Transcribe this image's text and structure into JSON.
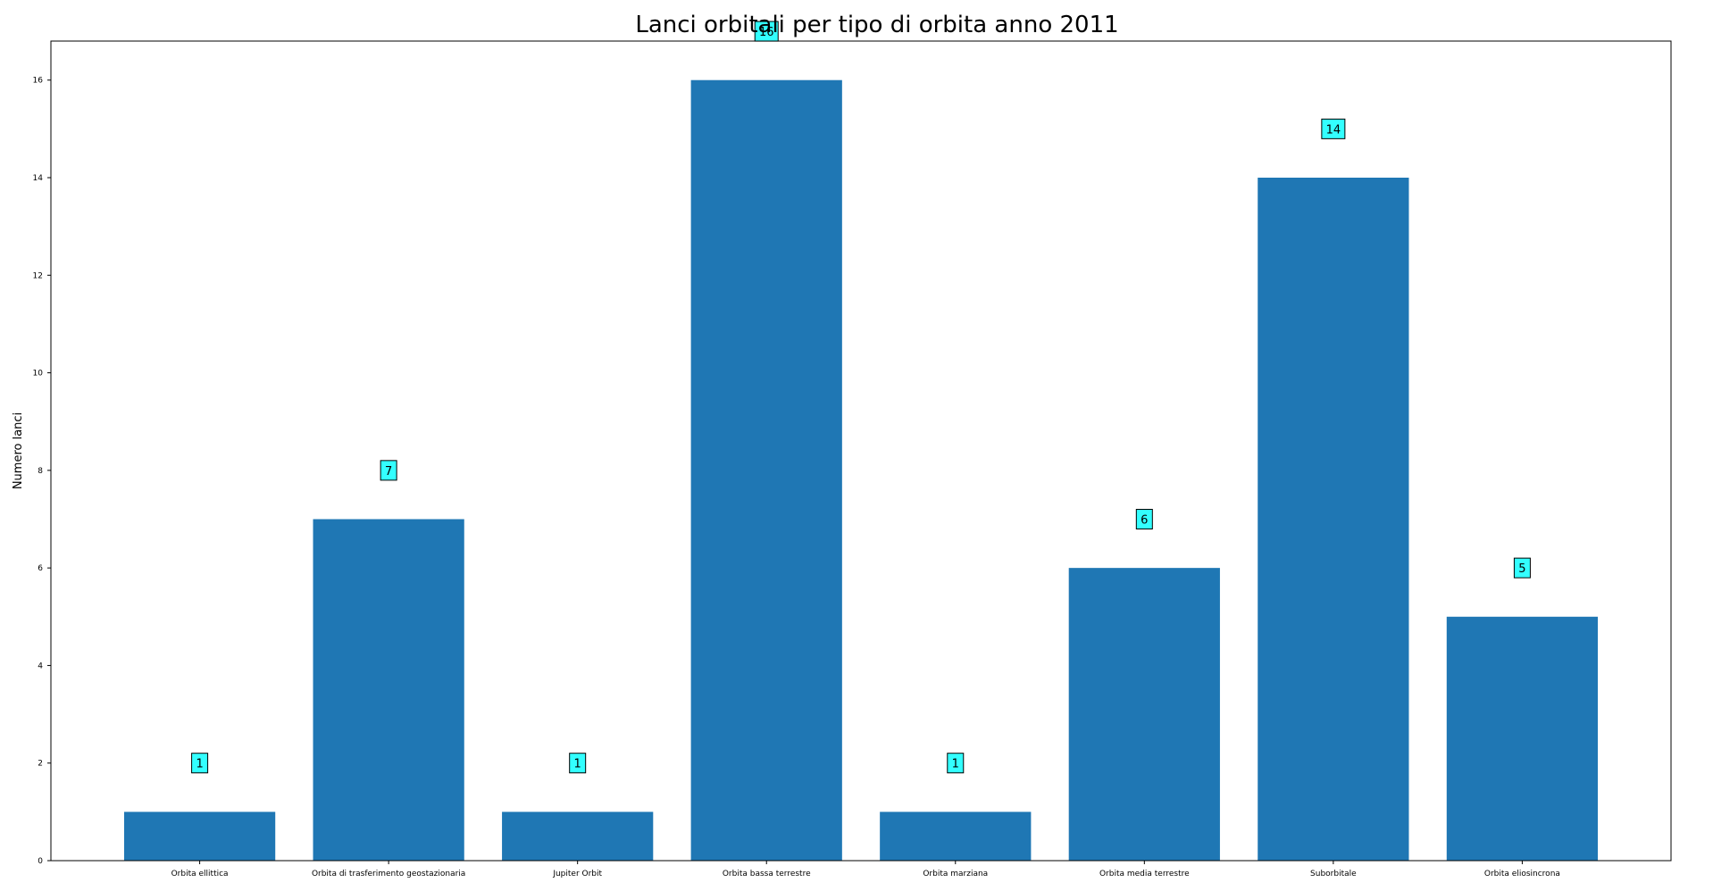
{
  "chart_data": {
    "type": "bar",
    "title": "Lanci orbitali per tipo di orbita anno 2011",
    "xlabel": "",
    "ylabel": "Numero lanci",
    "categories": [
      "Orbita ellittica",
      "Orbita di trasferimento geostazionaria",
      "Jupiter Orbit",
      "Orbita bassa terrestre",
      "Orbita marziana",
      "Orbita media terrestre",
      "Suborbitale",
      "Orbita eliosincrona"
    ],
    "values": [
      1,
      7,
      1,
      16,
      1,
      6,
      14,
      5
    ],
    "yticks": [
      "0",
      "2",
      "4",
      "6",
      "8",
      "10",
      "12",
      "14",
      "16"
    ],
    "ylim": [
      0,
      16.8
    ],
    "bar_color": "#1f77b4",
    "label_box_color": "#33ffff",
    "grid": false,
    "legend": "none"
  }
}
